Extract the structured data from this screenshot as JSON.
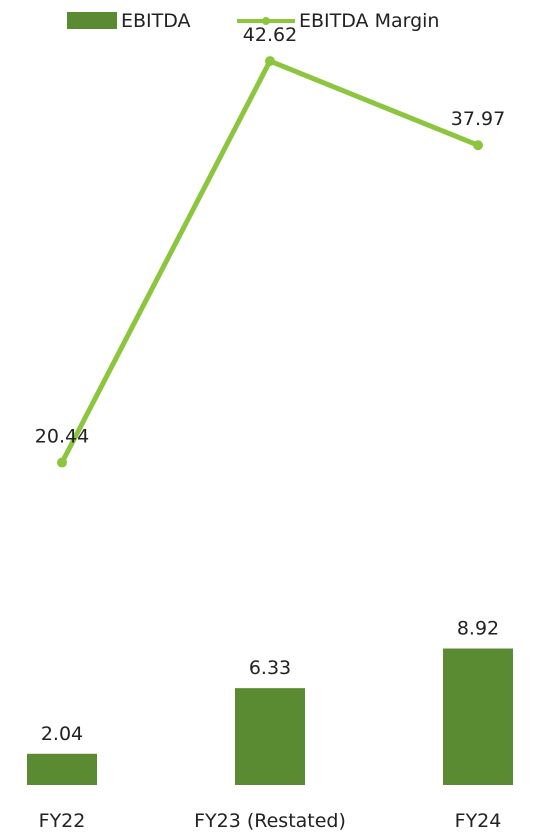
{
  "chart_data": {
    "type": "bar",
    "categories": [
      "FY22",
      "FY23 (Restated)",
      "FY24"
    ],
    "series": [
      {
        "name": "EBITDA",
        "type": "bar",
        "values": [
          2.04,
          6.33,
          8.92
        ],
        "color": "#5a8a32"
      },
      {
        "name": "EBITDA Margin",
        "type": "line",
        "values": [
          20.44,
          42.62,
          37.97
        ],
        "color": "#8cc63f"
      }
    ],
    "value_labels": {
      "bars": [
        "2.04",
        "6.33",
        "8.92"
      ],
      "line": [
        "20.44",
        "42.62",
        "37.97"
      ]
    },
    "legend_position": "top",
    "grid": false,
    "axes_visible": false,
    "title": "",
    "xlabel": "",
    "ylabel": ""
  }
}
